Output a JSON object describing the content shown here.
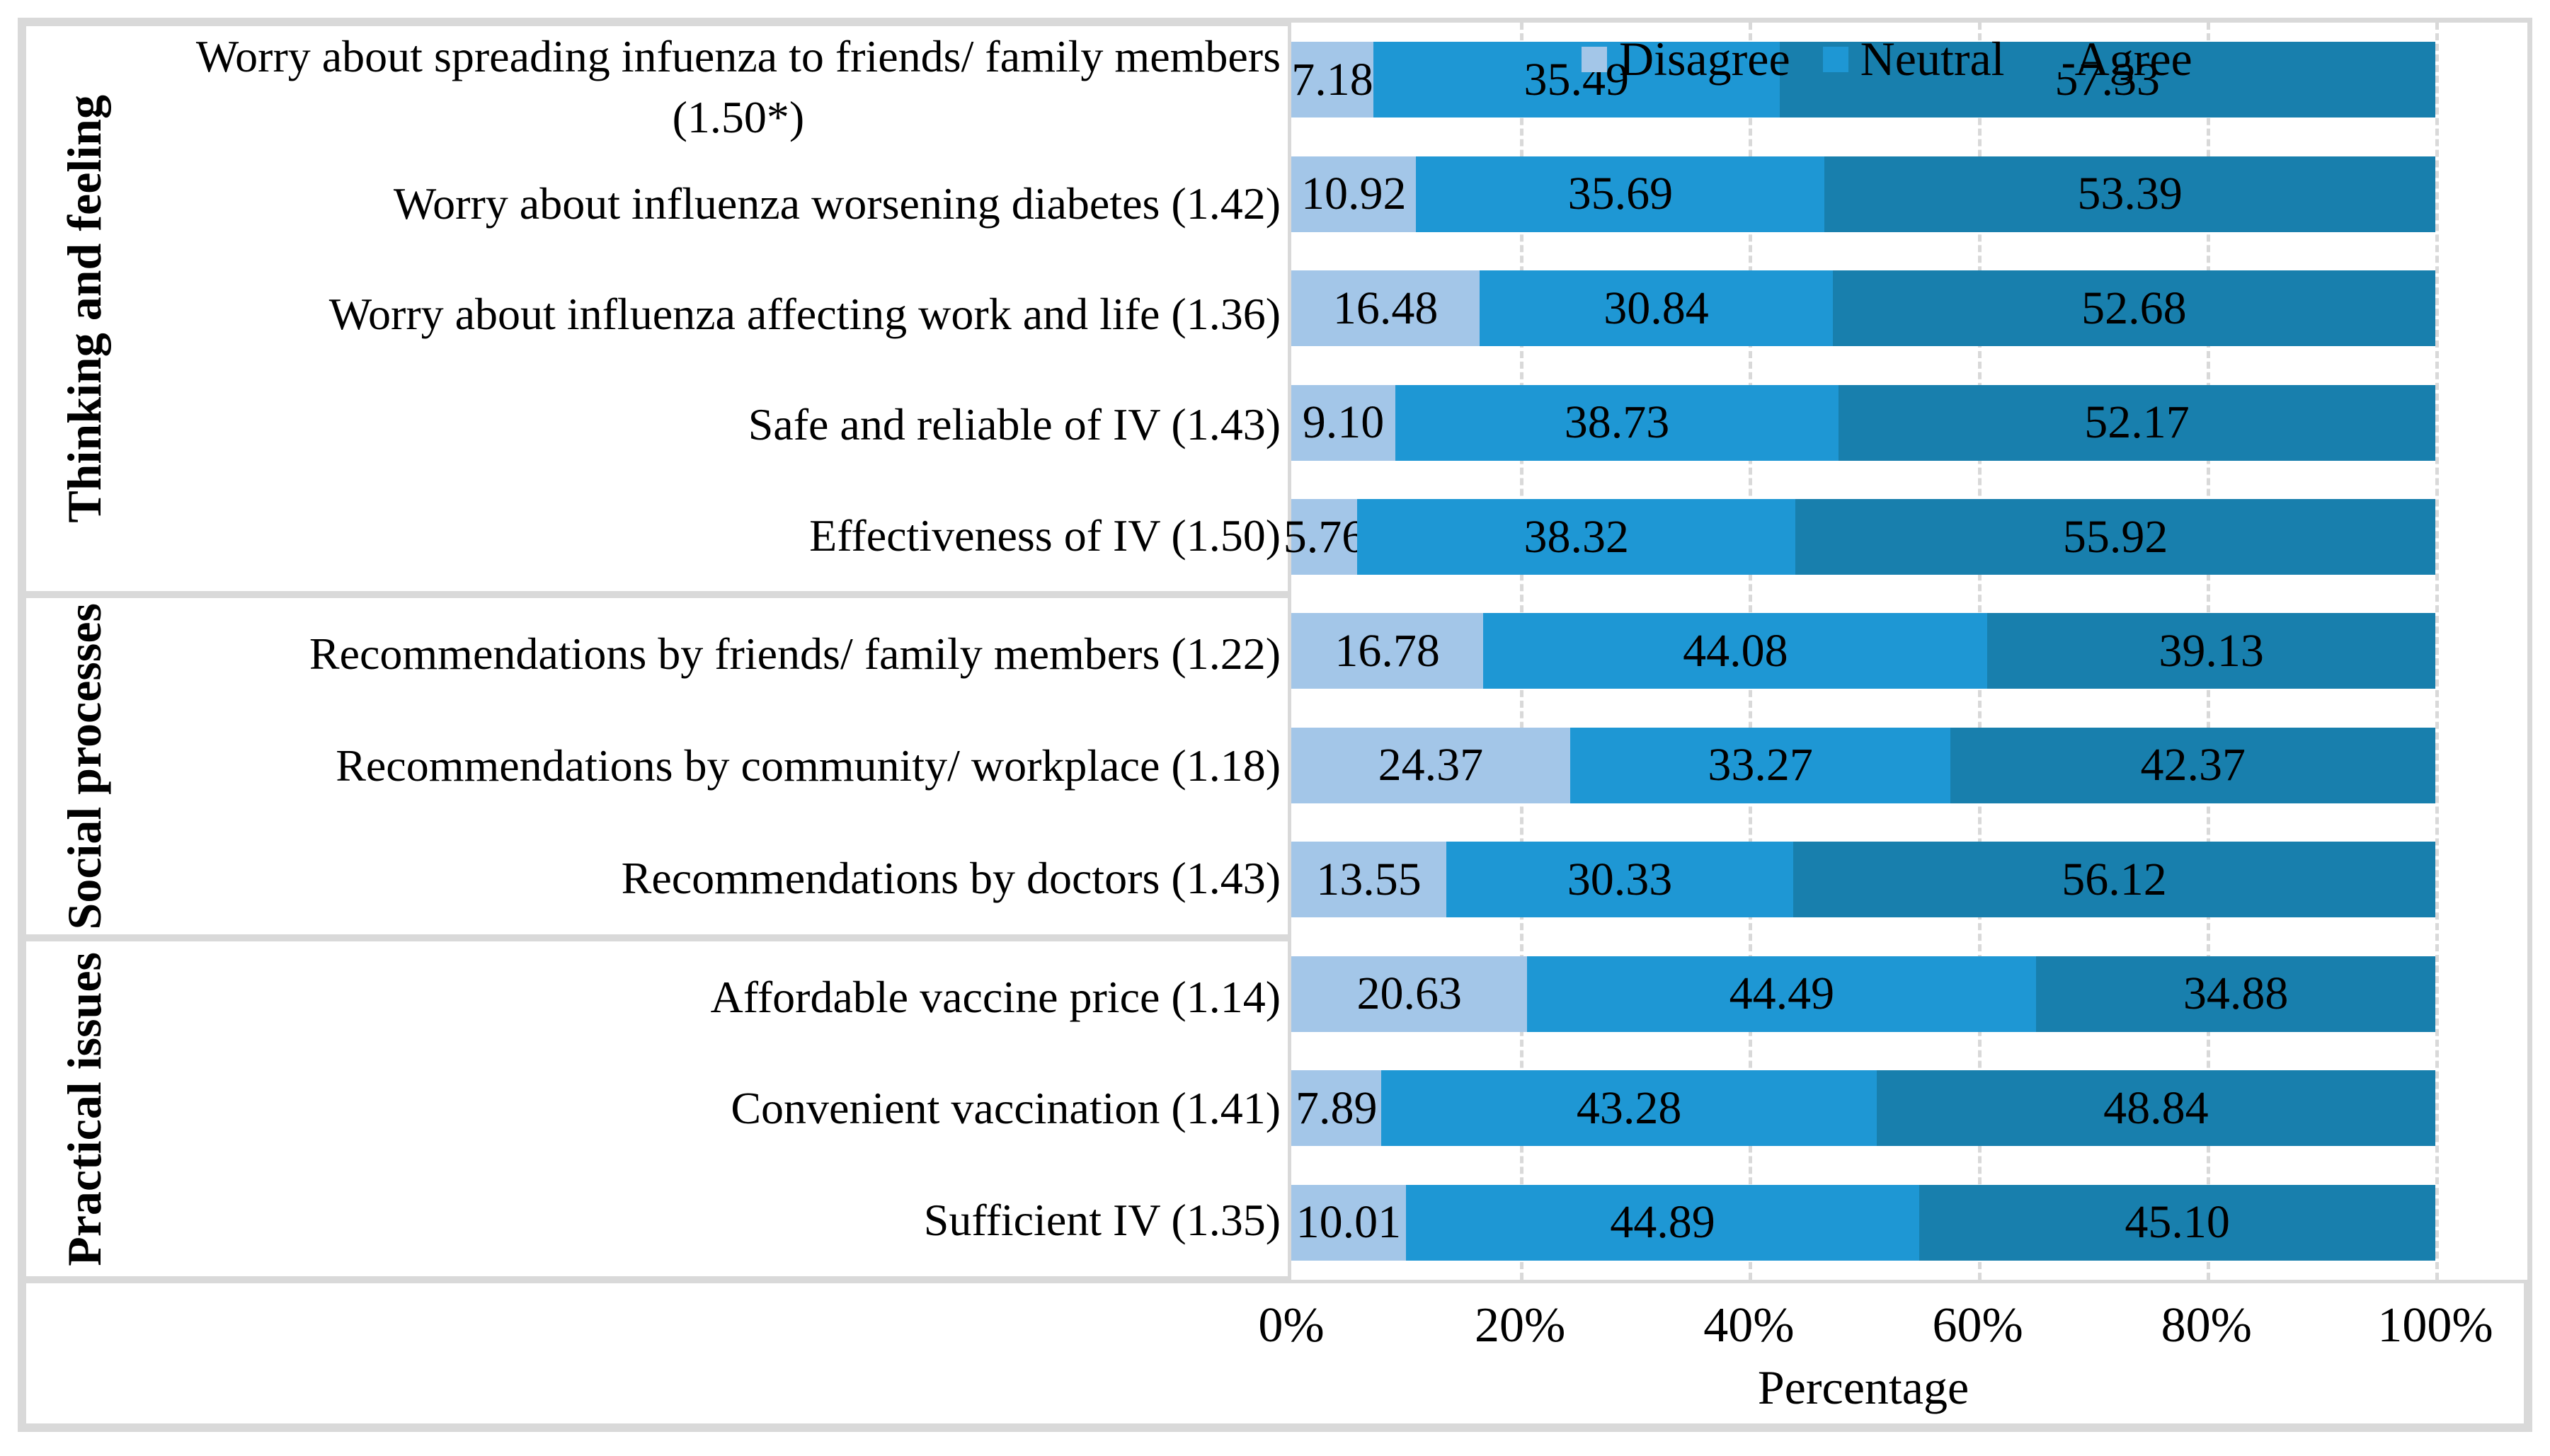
{
  "colors": {
    "disagree": "#a3c6e8",
    "neutral": "#1e97d4",
    "agree": "#187fad",
    "grid": "#d9d9d9"
  },
  "legend": {
    "items": [
      {
        "label": "Disagree",
        "color": "#a3c6e8"
      },
      {
        "label": "Neutral",
        "color": "#1e97d4"
      },
      {
        "label": "Agree",
        "color": "#187fad"
      }
    ]
  },
  "axis": {
    "ticks": [
      "0%",
      "20%",
      "40%",
      "60%",
      "80%",
      "100%"
    ],
    "title": "Percentage"
  },
  "groups": [
    {
      "label": "Thinking and feeling",
      "rows": [
        {
          "label_lines": [
            "Worry about spreading infuenza to friends/ family members",
            "(1.50*)"
          ],
          "values": [
            "7.18",
            "35.49",
            "57.33"
          ]
        },
        {
          "label_lines": [
            "Worry about influenza worsening diabetes (1.42)"
          ],
          "values": [
            "10.92",
            "35.69",
            "53.39"
          ]
        },
        {
          "label_lines": [
            "Worry about influenza affecting work and life (1.36)"
          ],
          "values": [
            "16.48",
            "30.84",
            "52.68"
          ]
        },
        {
          "label_lines": [
            "Safe and reliable of IV (1.43)"
          ],
          "values": [
            "9.10",
            "38.73",
            "52.17"
          ]
        },
        {
          "label_lines": [
            "Effectiveness of IV (1.50)"
          ],
          "values": [
            "5.76",
            "38.32",
            "55.92"
          ]
        }
      ]
    },
    {
      "label": "Social processes",
      "rows": [
        {
          "label_lines": [
            "Recommendations by friends/ family members (1.22)"
          ],
          "values": [
            "16.78",
            "44.08",
            "39.13"
          ]
        },
        {
          "label_lines": [
            "Recommendations by community/ workplace (1.18)"
          ],
          "values": [
            "24.37",
            "33.27",
            "42.37"
          ]
        },
        {
          "label_lines": [
            "Recommendations by doctors (1.43)"
          ],
          "values": [
            "13.55",
            "30.33",
            "56.12"
          ]
        }
      ]
    },
    {
      "label": "Practical issues",
      "rows": [
        {
          "label_lines": [
            "Affordable vaccine price (1.14)"
          ],
          "values": [
            "20.63",
            "44.49",
            "34.88"
          ]
        },
        {
          "label_lines": [
            "Convenient vaccination (1.41)"
          ],
          "values": [
            "7.89",
            "43.28",
            "48.84"
          ]
        },
        {
          "label_lines": [
            "Sufficient IV (1.35)"
          ],
          "values": [
            "10.01",
            "44.89",
            "45.10"
          ]
        }
      ]
    }
  ],
  "chart_data": {
    "type": "bar",
    "orientation": "horizontal-stacked-100pct",
    "categories": [
      "Worry about spreading infuenza to friends/ family members (1.50*)",
      "Worry about influenza worsening diabetes (1.42)",
      "Worry about influenza affecting work and life (1.36)",
      "Safe and reliable of IV (1.43)",
      "Effectiveness of IV (1.50)",
      "Recommendations by friends/ family members (1.22)",
      "Recommendations by community/ workplace (1.18)",
      "Recommendations by doctors (1.43)",
      "Affordable vaccine price (1.14)",
      "Convenient vaccination (1.41)",
      "Sufficient IV (1.35)"
    ],
    "category_groups": [
      {
        "name": "Thinking and feeling",
        "categories_count": 5
      },
      {
        "name": "Social processes",
        "categories_count": 3
      },
      {
        "name": "Practical issues",
        "categories_count": 3
      }
    ],
    "series": [
      {
        "name": "Disagree",
        "color": "#a3c6e8",
        "values": [
          7.18,
          10.92,
          16.48,
          9.1,
          5.76,
          16.78,
          24.37,
          13.55,
          20.63,
          7.89,
          10.01
        ]
      },
      {
        "name": "Neutral",
        "color": "#1e97d4",
        "values": [
          35.49,
          35.69,
          30.84,
          38.73,
          38.32,
          44.08,
          33.27,
          30.33,
          44.49,
          43.28,
          44.89
        ]
      },
      {
        "name": "Agree",
        "color": "#187fad",
        "values": [
          57.33,
          53.39,
          52.68,
          52.17,
          55.92,
          39.13,
          42.37,
          56.12,
          34.88,
          48.84,
          45.1
        ]
      }
    ],
    "xlabel": "Percentage",
    "ylabel": "",
    "title": "",
    "xlim": [
      0,
      100
    ],
    "x_ticks": [
      "0%",
      "20%",
      "40%",
      "60%",
      "80%",
      "100%"
    ],
    "grid": "vertical dashed gridlines every 20%",
    "legend_position": "top",
    "data_labels": "shown inside segments"
  }
}
